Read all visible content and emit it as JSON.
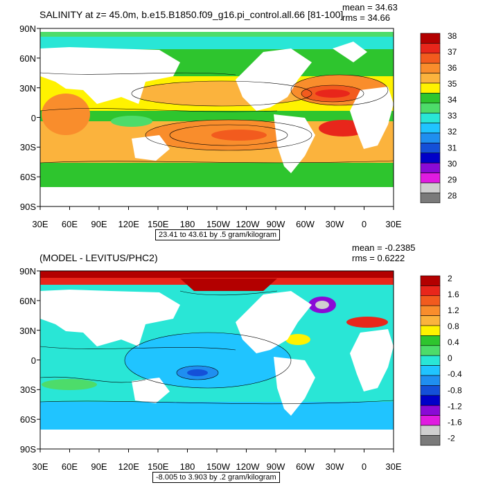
{
  "panels": [
    {
      "title": "SALINITY at z=  45.0m, b.e15.B1850.f09_g16.pi_control.all.66 [81-100]",
      "mean": "mean = 34.63",
      "rms": "rms = 34.66",
      "contour_info": "23.41 to 43.61 by .5 gram/kilogram",
      "lat_labels": [
        "90N",
        "60N",
        "30N",
        "0",
        "30S",
        "60S",
        "90S"
      ],
      "lon_labels": [
        "30E",
        "60E",
        "90E",
        "120E",
        "150E",
        "180",
        "150W",
        "120W",
        "90W",
        "60W",
        "30W",
        "0",
        "30E"
      ],
      "colorbar": {
        "labels": [
          "38",
          "37",
          "36",
          "35",
          "34",
          "33",
          "32",
          "31",
          "30",
          "29",
          "28"
        ],
        "colors": [
          "#b30000",
          "#e8261b",
          "#f25b1e",
          "#f98d2c",
          "#fbb33d",
          "#fff200",
          "#2ec52e",
          "#4ddc6a",
          "#29e6d6",
          "#20c4ff",
          "#1f8ff0",
          "#1450d8",
          "#0000c8",
          "#8a0ad6",
          "#e01be0",
          "#cfcfcf",
          "#7a7a7a"
        ]
      }
    },
    {
      "title": "(MODEL - LEVITUS/PHC2)",
      "mean": "mean = -0.2385",
      "rms": "rms = 0.6222",
      "contour_info": "-8.005 to 3.903 by .2 gram/kilogram",
      "lat_labels": [
        "90N",
        "60N",
        "30N",
        "0",
        "30S",
        "60S",
        "90S"
      ],
      "lon_labels": [
        "30E",
        "60E",
        "90E",
        "120E",
        "150E",
        "180",
        "150W",
        "120W",
        "90W",
        "60W",
        "30W",
        "0",
        "30E"
      ],
      "colorbar": {
        "labels": [
          "2",
          "1.6",
          "1.2",
          "0.8",
          "0.4",
          "0",
          "-0.4",
          "-0.8",
          "-1.2",
          "-1.6",
          "-2"
        ],
        "colors": [
          "#b30000",
          "#e8261b",
          "#f25b1e",
          "#f98d2c",
          "#fbb33d",
          "#fff200",
          "#2ec52e",
          "#4ddc6a",
          "#29e6d6",
          "#20c4ff",
          "#1f8ff0",
          "#1450d8",
          "#0000c8",
          "#8a0ad6",
          "#e01be0",
          "#cfcfcf",
          "#7a7a7a"
        ]
      }
    }
  ]
}
